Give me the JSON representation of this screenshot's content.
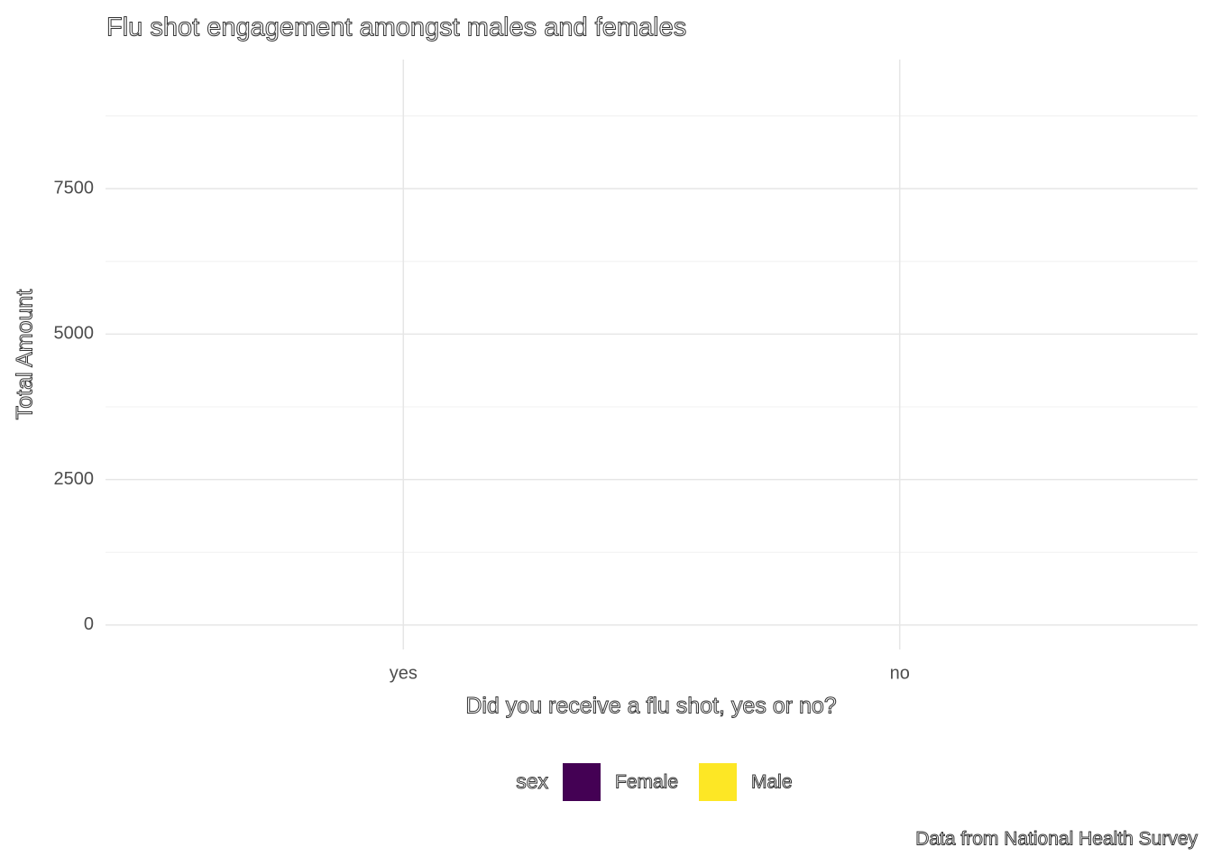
{
  "chart_data": {
    "type": "bar",
    "title": "Flu shot engagement amongst males and females",
    "x_label": "Did you receive a flu shot, yes or no?",
    "y_label": "Total Amount",
    "caption": "Data from National Health Survey",
    "legend_title": "sex",
    "categories": [
      "yes",
      "no"
    ],
    "series": [
      {
        "name": "Female",
        "color": "#440154",
        "values": [
          null,
          null
        ]
      },
      {
        "name": "Male",
        "color": "#FDE725",
        "values": [
          null,
          null
        ]
      }
    ],
    "ylim": [
      -420,
      9720
    ],
    "yticks": [
      0,
      2500,
      5000,
      7500
    ],
    "minor_yticks": [
      1250,
      3750,
      6250,
      8750
    ],
    "grid": true,
    "legend": "bottom"
  }
}
